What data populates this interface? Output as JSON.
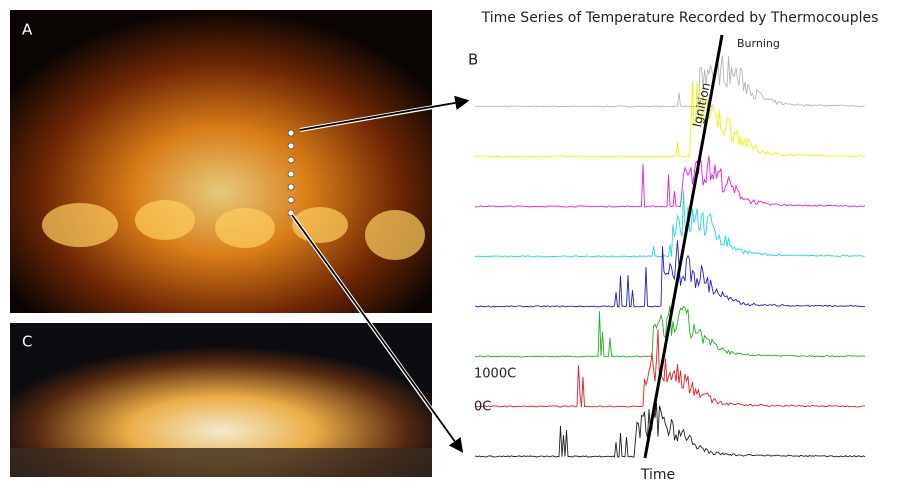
{
  "panels": {
    "a": "A",
    "b": "B",
    "c": "C"
  },
  "title": "Time Series of Temperature Recorded by Thermocouples",
  "annotations": {
    "burning": "Burning",
    "ignition": "Ignition",
    "high": "1000C",
    "low": "0C",
    "time": "Time"
  },
  "traces": [
    {
      "color": "#b5b5b5"
    },
    {
      "color": "#f2f200"
    },
    {
      "color": "#e020e0"
    },
    {
      "color": "#20d8e0"
    },
    {
      "color": "#2020c8"
    },
    {
      "color": "#20b020"
    },
    {
      "color": "#e02020"
    },
    {
      "color": "#202020"
    }
  ]
}
